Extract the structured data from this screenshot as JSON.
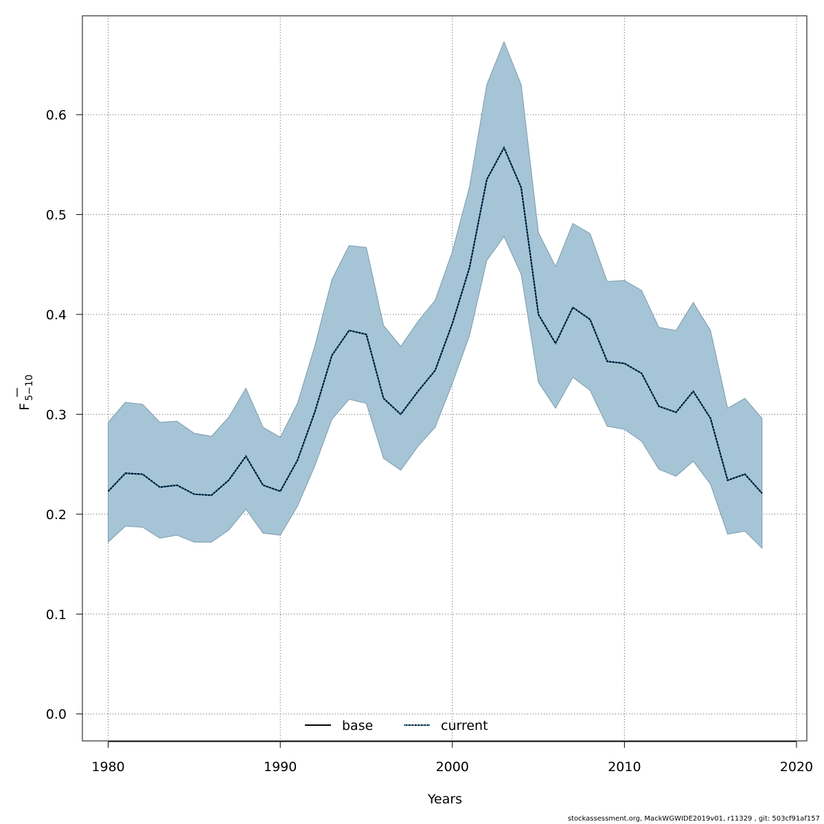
{
  "chart_data": {
    "type": "line",
    "title": "",
    "xlabel": "Years",
    "ylabel": {
      "main": "F",
      "subscript": "5−10"
    },
    "xlim": [
      1978.5,
      2020.6
    ],
    "ylim": [
      -0.027,
      0.699
    ],
    "xticks": [
      1980,
      1990,
      2000,
      2010,
      2020
    ],
    "xtick_labels": [
      "1980",
      "1990",
      "2000",
      "2010",
      "2020"
    ],
    "yticks": [
      0.0,
      0.1,
      0.2,
      0.3,
      0.4,
      0.5,
      0.6
    ],
    "ytick_labels": [
      "0.0",
      "0.1",
      "0.2",
      "0.3",
      "0.4",
      "0.5",
      "0.6"
    ],
    "grid": true,
    "legend_position": "bottom",
    "x": [
      1980,
      1981,
      1982,
      1983,
      1984,
      1985,
      1986,
      1987,
      1988,
      1989,
      1990,
      1991,
      1992,
      1993,
      1994,
      1995,
      1996,
      1997,
      1998,
      1999,
      2000,
      2001,
      2002,
      2003,
      2004,
      2005,
      2006,
      2007,
      2008,
      2009,
      2010,
      2011,
      2012,
      2013,
      2014,
      2015,
      2016,
      2017,
      2018
    ],
    "band": {
      "color": "#a5c4d6",
      "edge_color": "#7a9aaa",
      "upper": [
        0.292,
        0.312,
        0.31,
        0.292,
        0.293,
        0.281,
        0.278,
        0.297,
        0.326,
        0.287,
        0.277,
        0.311,
        0.368,
        0.435,
        0.469,
        0.467,
        0.389,
        0.368,
        0.393,
        0.414,
        0.463,
        0.528,
        0.63,
        0.673,
        0.63,
        0.482,
        0.448,
        0.491,
        0.481,
        0.433,
        0.434,
        0.424,
        0.387,
        0.384,
        0.412,
        0.384,
        0.306,
        0.316,
        0.296
      ],
      "lower": [
        0.172,
        0.188,
        0.187,
        0.176,
        0.179,
        0.172,
        0.172,
        0.184,
        0.205,
        0.181,
        0.179,
        0.208,
        0.248,
        0.295,
        0.315,
        0.311,
        0.256,
        0.244,
        0.268,
        0.287,
        0.331,
        0.379,
        0.454,
        0.478,
        0.44,
        0.332,
        0.306,
        0.337,
        0.324,
        0.288,
        0.285,
        0.273,
        0.245,
        0.238,
        0.253,
        0.23,
        0.18,
        0.183,
        0.166
      ]
    },
    "series": [
      {
        "name": "base",
        "style": "solid",
        "color": "#000000",
        "values": [
          0.223,
          0.241,
          0.24,
          0.227,
          0.229,
          0.22,
          0.219,
          0.234,
          0.258,
          0.229,
          0.223,
          0.254,
          0.302,
          0.359,
          0.384,
          0.38,
          0.316,
          0.3,
          0.323,
          0.344,
          0.391,
          0.447,
          0.535,
          0.567,
          0.527,
          0.4,
          0.371,
          0.407,
          0.395,
          0.353,
          0.351,
          0.341,
          0.308,
          0.302,
          0.323,
          0.296,
          0.234,
          0.24,
          0.221
        ]
      },
      {
        "name": "current",
        "style": "dotted",
        "color": "#1f77b4",
        "values": [
          0.223,
          0.241,
          0.24,
          0.227,
          0.229,
          0.22,
          0.219,
          0.234,
          0.258,
          0.229,
          0.223,
          0.254,
          0.302,
          0.359,
          0.384,
          0.38,
          0.316,
          0.3,
          0.323,
          0.344,
          0.391,
          0.447,
          0.535,
          0.567,
          0.527,
          0.4,
          0.371,
          0.407,
          0.395,
          0.353,
          0.351,
          0.341,
          0.308,
          0.302,
          0.323,
          0.296,
          0.234,
          0.24,
          0.221
        ]
      }
    ]
  },
  "footer": "stockassessment.org, MackWGWIDE2019v01, r11329 , git: 503cf91af157"
}
